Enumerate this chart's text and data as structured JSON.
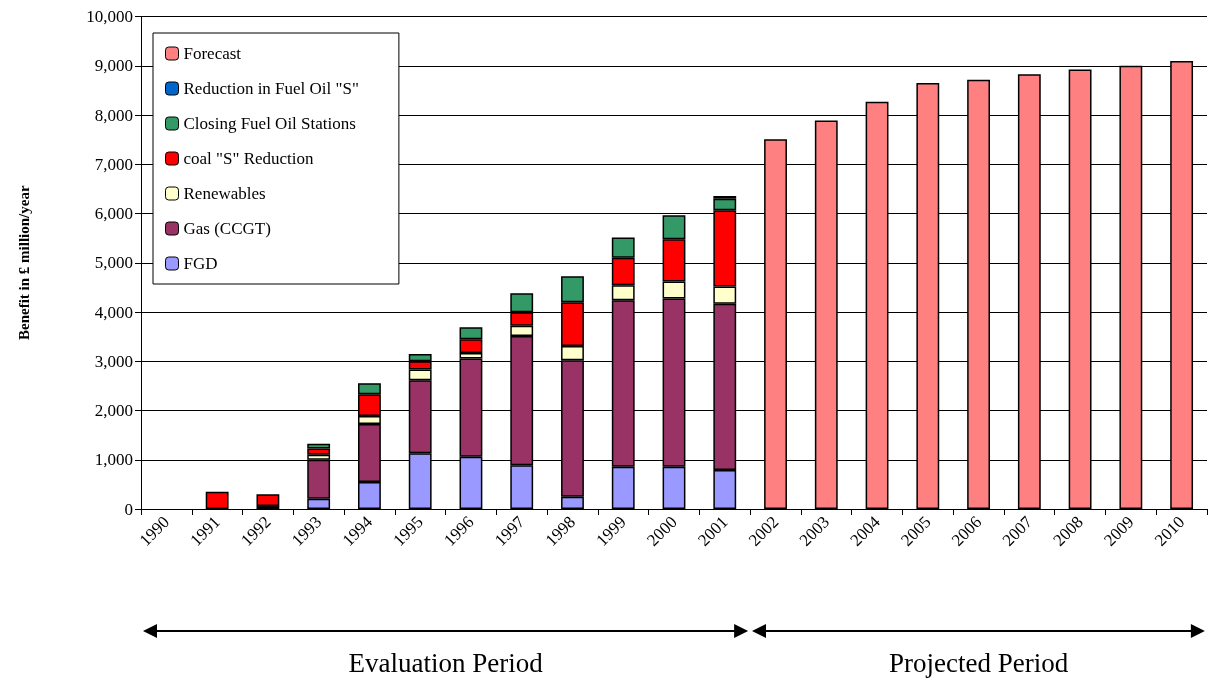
{
  "chart_data": {
    "type": "bar",
    "stacked": true,
    "ylabel": "Benefit in £ million/year",
    "categories": [
      "1990",
      "1991",
      "1992",
      "1993",
      "1994",
      "1995",
      "1996",
      "1997",
      "1998",
      "1999",
      "2000",
      "2001",
      "2002",
      "2003",
      "2004",
      "2005",
      "2006",
      "2007",
      "2008",
      "2009",
      "2010"
    ],
    "series": [
      {
        "name": "FGD",
        "color": "#9999ff",
        "values": [
          null,
          null,
          null,
          210,
          550,
          1130,
          1060,
          890,
          250,
          860,
          860,
          790,
          null,
          null,
          null,
          null,
          null,
          null,
          null,
          null,
          null
        ]
      },
      {
        "name": "Gas (CCGT)",
        "color": "#993366",
        "values": [
          null,
          null,
          60,
          790,
          1175,
          1485,
          1995,
          2625,
          2770,
          3380,
          3415,
          3380,
          null,
          null,
          null,
          null,
          null,
          null,
          null,
          null,
          null
        ]
      },
      {
        "name": "Renewables",
        "color": "#ffffcc",
        "values": [
          null,
          null,
          null,
          100,
          165,
          220,
          115,
          205,
          290,
          305,
          345,
          350,
          null,
          null,
          null,
          null,
          null,
          null,
          null,
          null,
          null
        ]
      },
      {
        "name": "coal \"S\" Reduction",
        "color": "#ff0000",
        "values": [
          null,
          350,
          240,
          130,
          440,
          165,
          275,
          275,
          890,
          555,
          855,
          1545,
          null,
          null,
          null,
          null,
          null,
          null,
          null,
          null,
          null
        ]
      },
      {
        "name": "Closing Fuel Oil Stations",
        "color": "#339966",
        "values": [
          null,
          null,
          null,
          95,
          225,
          145,
          245,
          385,
          525,
          415,
          490,
          235,
          null,
          null,
          null,
          null,
          null,
          null,
          null,
          null,
          null
        ]
      },
      {
        "name": "Reduction in Fuel Oil \"S\"",
        "color": "#0066cc",
        "values": [
          null,
          null,
          null,
          null,
          null,
          null,
          null,
          null,
          null,
          null,
          null,
          55,
          null,
          null,
          null,
          null,
          null,
          null,
          null,
          null,
          null
        ]
      },
      {
        "name": "Forecast",
        "color": "#ff8080",
        "values": [
          null,
          null,
          null,
          null,
          null,
          null,
          null,
          null,
          null,
          null,
          null,
          null,
          7510,
          7890,
          8270,
          8650,
          8715,
          8825,
          8925,
          9000,
          9095
        ]
      }
    ],
    "ylim": [
      0,
      10000
    ],
    "yticks": [
      0,
      {
        "value": 1000,
        "label": "1,000"
      },
      {
        "value": 2000,
        "label": "2,000"
      },
      {
        "value": 3000,
        "label": "3,000"
      },
      {
        "value": 4000,
        "label": "4,000"
      },
      {
        "value": 5000,
        "label": "5,000"
      },
      {
        "value": 6000,
        "label": "6,000"
      },
      {
        "value": 7000,
        "label": "7,000"
      },
      {
        "value": 8000,
        "label": "8,000"
      },
      {
        "value": 9000,
        "label": "9,000"
      },
      {
        "value": 10000,
        "label": "10,000"
      }
    ],
    "grid": "y",
    "legend": "top left",
    "annotations": [
      "Evaluation Period",
      "Projected Period"
    ]
  }
}
